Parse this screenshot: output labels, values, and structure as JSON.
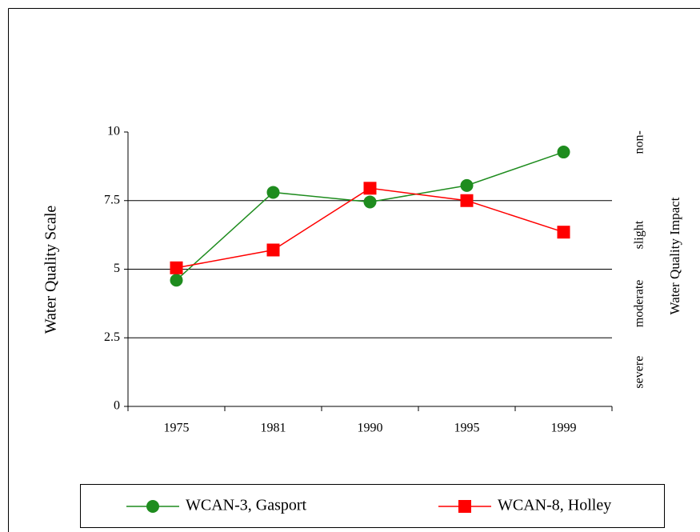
{
  "chart_data": {
    "type": "line",
    "categories": [
      "1975",
      "1981",
      "1990",
      "1995",
      "1999"
    ],
    "series": [
      {
        "name": "WCAN-3, Gasport",
        "color": "#1e8c1e",
        "marker": "circle",
        "values": [
          4.6,
          7.8,
          7.45,
          8.05,
          9.27
        ]
      },
      {
        "name": "WCAN-8, Holley",
        "color": "#ff0000",
        "marker": "square",
        "values": [
          5.05,
          5.7,
          7.95,
          7.5,
          6.35
        ]
      }
    ],
    "ylim": [
      0,
      10
    ],
    "yticks": [
      0,
      2.5,
      5,
      7.5,
      10
    ],
    "ylabel": "Water Quality Scale",
    "y2label": "Water Quality Impact",
    "impact_labels": [
      "severe",
      "moderate",
      "slight",
      "non-"
    ],
    "grid": true,
    "legend": "bottom"
  }
}
